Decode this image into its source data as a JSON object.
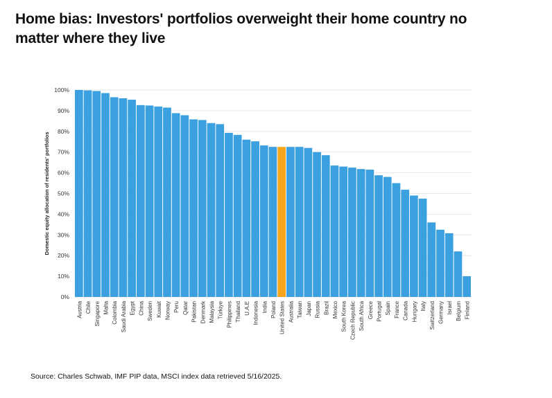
{
  "title_lines": [
    "Home bias: Investors' portfolios overweight their home country no",
    "matter where they live"
  ],
  "source": "Source: Charles Schwab, IMF PIP data, MSCI index data retrieved 5/16/2025.",
  "colors": {
    "bar": "#3aa0e0",
    "highlight": "#f7a61c",
    "grid": "#e6e6e6"
  },
  "chart_data": {
    "type": "bar",
    "title": "",
    "xlabel": "",
    "ylabel": "Domestic equity allocation of residents' portfolios",
    "ylim": [
      0,
      100
    ],
    "yticks": [
      "0%",
      "10%",
      "20%",
      "30%",
      "40%",
      "50%",
      "60%",
      "70%",
      "80%",
      "90%",
      "100%"
    ],
    "highlight_category": "United States",
    "grid": true,
    "categories": [
      "Austria",
      "Chile",
      "Singapore",
      "Malta",
      "Colombia",
      "Saudi Arabia",
      "Egypt",
      "China",
      "Sweden",
      "Kuwait",
      "Norway",
      "Peru",
      "Qatar",
      "Pakistan",
      "Denmark",
      "Malaysia",
      "Türkiye",
      "Philippines",
      "Thailand",
      "U.A.E",
      "Indonesia",
      "India",
      "Poland",
      "United States",
      "Australia",
      "Taiwan",
      "Japan",
      "Russia",
      "Brazil",
      "Mexico",
      "South Korea",
      "Czech Republic",
      "South Africa",
      "Greece",
      "Portugal",
      "Spain",
      "France",
      "Canada",
      "Hungary",
      "Italy",
      "Switzerland",
      "Germany",
      "Israel",
      "Belgium",
      "Finland"
    ],
    "values": [
      100,
      99.8,
      99.5,
      98.5,
      96.5,
      96,
      95.3,
      92.7,
      92.5,
      92,
      91.5,
      88.8,
      87.8,
      85.8,
      85.5,
      84,
      83.5,
      79.3,
      78.3,
      76,
      75.2,
      73.2,
      72.5,
      72.5,
      72.5,
      72.5,
      72,
      70,
      68.5,
      63.5,
      63,
      62.5,
      61.8,
      61.5,
      58.8,
      58,
      55,
      51.8,
      49,
      47.5,
      36,
      32.5,
      30.8,
      22,
      10
    ]
  }
}
